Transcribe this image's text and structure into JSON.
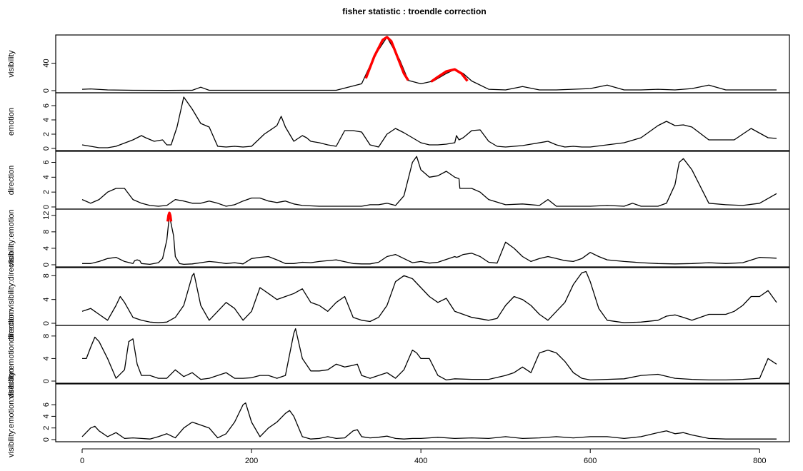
{
  "title": "fisher statistic : troendle correction",
  "colors": {
    "line": "#000000",
    "significant": "#ff0000"
  },
  "x_axis": {
    "range": [
      0,
      820
    ],
    "ticks": [
      0,
      200,
      400,
      600,
      800
    ],
    "tick_labels": [
      "0",
      "200",
      "400",
      "600",
      "800"
    ]
  },
  "chart_data": [
    {
      "type": "line",
      "ylabel": "visibility",
      "ylim": [
        0,
        78
      ],
      "yticks": [
        0,
        40
      ],
      "ytick_labels": [
        "0",
        "40"
      ],
      "x": [
        0,
        10,
        30,
        60,
        100,
        130,
        140,
        150,
        200,
        250,
        300,
        330,
        345,
        360,
        375,
        385,
        400,
        415,
        430,
        440,
        450,
        460,
        480,
        500,
        520,
        540,
        560,
        600,
        620,
        640,
        660,
        680,
        700,
        720,
        740,
        760,
        780,
        800,
        820
      ],
      "values": [
        2,
        2.5,
        1,
        0.5,
        0.3,
        0.5,
        5,
        0.5,
        0.5,
        0.5,
        0.5,
        10,
        50,
        78,
        45,
        15,
        10,
        14,
        25,
        31,
        25,
        14,
        2,
        1,
        6,
        1,
        1,
        3,
        8,
        1,
        1,
        2,
        1,
        3,
        8,
        1,
        1,
        1,
        1
      ],
      "significant_segments": [
        {
          "x": [
            335,
            345,
            355,
            360,
            365,
            372,
            380,
            385
          ],
          "values": [
            18,
            50,
            74,
            78,
            72,
            50,
            25,
            15
          ]
        },
        {
          "x": [
            412,
            420,
            430,
            440,
            448,
            455
          ],
          "values": [
            13,
            20,
            28,
            31,
            25,
            14
          ]
        }
      ]
    },
    {
      "type": "line",
      "ylabel": "emotion",
      "ylim": [
        0,
        7.5
      ],
      "yticks": [
        0,
        2,
        4,
        6
      ],
      "ytick_labels": [
        "0",
        "2",
        "4",
        "6"
      ],
      "x": [
        0,
        10,
        20,
        30,
        40,
        60,
        70,
        75,
        85,
        95,
        100,
        105,
        112,
        120,
        130,
        140,
        150,
        160,
        170,
        180,
        190,
        200,
        215,
        230,
        235,
        240,
        250,
        260,
        265,
        270,
        280,
        290,
        300,
        310,
        320,
        330,
        340,
        350,
        360,
        370,
        380,
        390,
        400,
        410,
        420,
        430,
        440,
        442,
        445,
        450,
        460,
        470,
        480,
        490,
        500,
        520,
        550,
        560,
        570,
        580,
        590,
        600,
        640,
        660,
        680,
        690,
        700,
        710,
        720,
        740,
        770,
        790,
        810,
        820
      ],
      "values": [
        0.5,
        0.3,
        0.1,
        0.1,
        0.3,
        1.2,
        1.8,
        1.5,
        1.0,
        1.2,
        0.5,
        0.5,
        3.0,
        7.2,
        5.5,
        3.5,
        3.0,
        0.3,
        0.2,
        0.3,
        0.2,
        0.3,
        2.0,
        3.2,
        4.5,
        3.0,
        1.0,
        1.8,
        1.5,
        1.0,
        0.8,
        0.5,
        0.3,
        2.5,
        2.5,
        2.3,
        0.5,
        0.2,
        2.0,
        2.8,
        2.2,
        1.5,
        0.8,
        0.5,
        0.5,
        0.6,
        0.8,
        1.8,
        1.2,
        1.5,
        2.5,
        2.6,
        1.0,
        0.3,
        0.2,
        0.4,
        1.0,
        0.5,
        0.2,
        0.3,
        0.2,
        0.2,
        0.8,
        1.5,
        3.2,
        3.8,
        3.2,
        3.3,
        3.0,
        1.2,
        1.2,
        2.8,
        1.5,
        1.4
      ]
    },
    {
      "type": "line",
      "ylabel": "direction",
      "ylim": [
        0,
        7.2
      ],
      "yticks": [
        0,
        2,
        4,
        6
      ],
      "ytick_labels": [
        "0",
        "2",
        "4",
        "6"
      ],
      "x": [
        0,
        10,
        20,
        30,
        40,
        50,
        60,
        70,
        80,
        90,
        100,
        110,
        120,
        130,
        140,
        150,
        160,
        170,
        180,
        190,
        200,
        210,
        220,
        230,
        240,
        250,
        260,
        280,
        300,
        320,
        330,
        340,
        350,
        360,
        370,
        380,
        390,
        395,
        400,
        410,
        420,
        430,
        440,
        445,
        446,
        460,
        470,
        480,
        500,
        520,
        540,
        550,
        560,
        580,
        600,
        620,
        640,
        650,
        660,
        680,
        690,
        700,
        705,
        710,
        720,
        740,
        760,
        780,
        800,
        820
      ],
      "values": [
        1.0,
        0.5,
        1.0,
        2.0,
        2.5,
        2.5,
        1.0,
        0.5,
        0.2,
        0.1,
        0.2,
        1.0,
        0.8,
        0.5,
        0.5,
        0.8,
        0.5,
        0.1,
        0.3,
        0.8,
        1.2,
        1.2,
        0.8,
        0.6,
        0.8,
        0.4,
        0.2,
        0.1,
        0.1,
        0.1,
        0.1,
        0.3,
        0.3,
        0.5,
        0.2,
        1.5,
        6.0,
        6.8,
        5.0,
        4.0,
        4.2,
        4.8,
        4.0,
        3.8,
        2.5,
        2.5,
        2.0,
        1.0,
        0.3,
        0.4,
        0.2,
        1.0,
        0.1,
        0.1,
        0.1,
        0.2,
        0.1,
        0.5,
        0.1,
        0.1,
        0.5,
        3.0,
        6.0,
        6.5,
        5.0,
        0.5,
        0.3,
        0.2,
        0.5,
        1.8
      ]
    },
    {
      "type": "line",
      "ylabel": "visibility:emotion",
      "ylim": [
        0,
        13
      ],
      "yticks": [
        0,
        4,
        8,
        12
      ],
      "ytick_labels": [
        "0",
        "4",
        "8",
        "12"
      ],
      "x": [
        0,
        10,
        20,
        30,
        40,
        50,
        60,
        62,
        65,
        68,
        70,
        80,
        90,
        95,
        100,
        103,
        108,
        110,
        115,
        120,
        130,
        140,
        150,
        160,
        170,
        180,
        190,
        200,
        210,
        220,
        230,
        240,
        250,
        260,
        270,
        280,
        300,
        320,
        330,
        340,
        350,
        360,
        370,
        380,
        390,
        400,
        410,
        420,
        440,
        442,
        445,
        450,
        460,
        470,
        480,
        490,
        500,
        510,
        520,
        530,
        540,
        550,
        560,
        570,
        580,
        590,
        600,
        610,
        620,
        640,
        660,
        680,
        700,
        720,
        740,
        760,
        780,
        800,
        820
      ],
      "values": [
        0.3,
        0.3,
        0.8,
        1.5,
        1.8,
        0.8,
        0.3,
        1.0,
        1.2,
        1.0,
        0.3,
        0.1,
        0.5,
        1.5,
        6.0,
        12.0,
        7.0,
        2.0,
        0.3,
        0.1,
        0.2,
        0.5,
        0.8,
        0.6,
        0.3,
        0.5,
        0.2,
        1.5,
        1.8,
        2.0,
        1.2,
        0.3,
        0.3,
        0.6,
        0.5,
        0.8,
        1.2,
        0.3,
        0.2,
        0.2,
        0.6,
        2.0,
        2.5,
        1.5,
        0.5,
        0.8,
        0.4,
        0.6,
        2.0,
        1.8,
        2.0,
        2.5,
        2.8,
        2.0,
        0.6,
        0.4,
        5.5,
        4.0,
        2.0,
        0.8,
        1.5,
        2.0,
        1.5,
        1.0,
        0.8,
        1.5,
        3.0,
        2.0,
        1.2,
        0.8,
        0.5,
        0.3,
        0.2,
        0.3,
        0.5,
        0.3,
        0.5,
        1.8,
        1.6
      ],
      "significant_segments": [
        {
          "x": [
            101,
            102,
            103,
            104,
            105
          ],
          "values": [
            10.5,
            12.0,
            12.6,
            12.0,
            10.5
          ]
        }
      ]
    },
    {
      "type": "line",
      "ylabel": "direction:visibility:direction",
      "ylim": [
        0,
        9
      ],
      "yticks": [
        0,
        4,
        8
      ],
      "ytick_labels": [
        "0",
        "4",
        "8"
      ],
      "x": [
        0,
        10,
        20,
        30,
        40,
        45,
        50,
        60,
        70,
        80,
        90,
        100,
        110,
        120,
        130,
        132,
        140,
        150,
        160,
        170,
        180,
        190,
        200,
        210,
        220,
        230,
        240,
        250,
        260,
        270,
        280,
        290,
        300,
        310,
        320,
        330,
        340,
        350,
        360,
        370,
        380,
        390,
        400,
        410,
        420,
        430,
        440,
        460,
        480,
        490,
        500,
        510,
        520,
        530,
        540,
        550,
        560,
        570,
        580,
        590,
        595,
        600,
        610,
        620,
        640,
        660,
        680,
        690,
        700,
        710,
        720,
        740,
        760,
        770,
        780,
        790,
        800,
        810,
        820
      ],
      "values": [
        2.0,
        2.5,
        1.5,
        0.5,
        3.0,
        4.5,
        3.5,
        1.0,
        0.5,
        0.2,
        0.1,
        0.2,
        1.0,
        3.0,
        8.0,
        8.4,
        3.0,
        0.5,
        2.0,
        3.5,
        2.5,
        0.5,
        2.0,
        6.0,
        5.0,
        4.0,
        4.5,
        5.0,
        5.8,
        3.5,
        3.0,
        2.0,
        3.5,
        4.5,
        1.0,
        0.5,
        0.3,
        1.0,
        3.0,
        7.0,
        8.0,
        7.5,
        6.0,
        4.5,
        3.5,
        4.2,
        2.0,
        1.0,
        0.5,
        0.8,
        3.0,
        4.5,
        4.0,
        3.0,
        1.5,
        0.5,
        2.0,
        3.5,
        6.5,
        8.5,
        8.7,
        7.0,
        2.5,
        0.5,
        0.1,
        0.2,
        0.5,
        1.2,
        1.4,
        1.0,
        0.5,
        1.5,
        1.5,
        2.0,
        3.0,
        4.5,
        4.5,
        5.5,
        3.5
      ]
    },
    {
      "type": "line",
      "ylabel": "visibility:emotion:direction",
      "ylim": [
        0,
        9.5
      ],
      "yticks": [
        0,
        4,
        8
      ],
      "ytick_labels": [
        "0",
        "4",
        "8"
      ],
      "x": [
        0,
        5,
        10,
        15,
        20,
        30,
        40,
        50,
        55,
        60,
        65,
        70,
        80,
        90,
        100,
        110,
        120,
        130,
        140,
        150,
        160,
        170,
        180,
        190,
        200,
        210,
        220,
        230,
        240,
        250,
        252,
        260,
        270,
        280,
        290,
        300,
        310,
        320,
        325,
        330,
        340,
        350,
        360,
        370,
        380,
        390,
        395,
        400,
        410,
        420,
        430,
        440,
        460,
        480,
        500,
        510,
        520,
        530,
        540,
        550,
        560,
        570,
        580,
        590,
        600,
        620,
        640,
        660,
        680,
        700,
        720,
        740,
        760,
        780,
        800,
        810,
        820
      ],
      "values": [
        4.0,
        4.0,
        6.0,
        7.8,
        7.0,
        4.0,
        0.5,
        2.0,
        7.0,
        7.5,
        3.0,
        1.0,
        1.0,
        0.5,
        0.5,
        2.0,
        0.8,
        1.5,
        0.3,
        0.5,
        1.0,
        1.5,
        0.5,
        0.5,
        0.6,
        1.0,
        1.0,
        0.5,
        1.0,
        8.5,
        9.3,
        4.0,
        1.8,
        1.8,
        2.0,
        3.0,
        2.5,
        2.8,
        3.0,
        1.0,
        0.5,
        1.0,
        1.5,
        0.5,
        2.0,
        5.5,
        5.0,
        4.0,
        4.0,
        1.0,
        0.2,
        0.4,
        0.3,
        0.3,
        1.0,
        1.5,
        2.5,
        1.5,
        5.0,
        5.5,
        5.0,
        3.5,
        1.5,
        0.5,
        0.2,
        0.3,
        0.4,
        1.0,
        1.2,
        0.5,
        0.3,
        0.2,
        0.2,
        0.3,
        0.5,
        4.0,
        3.0
      ]
    },
    {
      "type": "line",
      "ylabel": "visibility:emotion:direction",
      "ylim": [
        0,
        9.2
      ],
      "yticks": [
        0,
        2,
        4,
        6
      ],
      "ytick_labels": [
        "0",
        "2",
        "4",
        "6"
      ],
      "x": [
        0,
        10,
        15,
        20,
        30,
        40,
        50,
        60,
        70,
        80,
        90,
        100,
        110,
        120,
        130,
        140,
        150,
        160,
        170,
        180,
        190,
        193,
        200,
        210,
        220,
        230,
        240,
        245,
        250,
        260,
        270,
        280,
        290,
        300,
        310,
        320,
        325,
        330,
        340,
        350,
        360,
        370,
        380,
        390,
        400,
        410,
        420,
        440,
        460,
        480,
        500,
        520,
        540,
        560,
        580,
        600,
        620,
        640,
        660,
        680,
        690,
        700,
        710,
        720,
        740,
        760,
        780,
        800,
        820
      ],
      "values": [
        0.5,
        2.0,
        2.3,
        1.5,
        0.5,
        1.2,
        0.2,
        0.3,
        0.2,
        0.1,
        0.5,
        1.0,
        0.3,
        2.0,
        3.0,
        2.5,
        2.0,
        0.3,
        1.0,
        3.0,
        6.0,
        6.3,
        3.0,
        0.5,
        2.0,
        3.0,
        4.5,
        5.0,
        4.0,
        0.5,
        0.1,
        0.2,
        0.5,
        0.2,
        0.3,
        1.5,
        1.7,
        0.5,
        0.3,
        0.4,
        0.6,
        0.2,
        0.1,
        0.2,
        0.2,
        0.3,
        0.4,
        0.2,
        0.3,
        0.2,
        0.5,
        0.2,
        0.3,
        0.5,
        0.3,
        0.5,
        0.5,
        0.2,
        0.5,
        1.2,
        1.5,
        1.0,
        1.2,
        0.8,
        0.2,
        0.1,
        0.1,
        0.1,
        0.1
      ]
    }
  ]
}
